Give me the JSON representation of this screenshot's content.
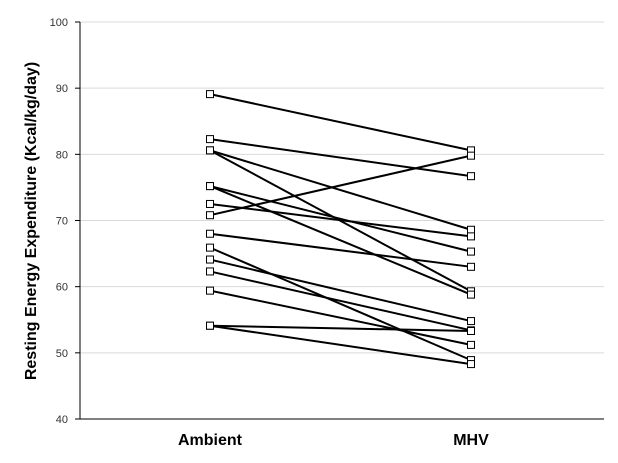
{
  "chart_data": {
    "type": "line",
    "categories": [
      "Ambient",
      "MHV"
    ],
    "ylabel": "Resting Energy Expenditure (Kcal/kg/day)",
    "xlabel": "",
    "title": "",
    "ylim": [
      40,
      100
    ],
    "yticks": [
      40,
      50,
      60,
      70,
      80,
      90,
      100
    ],
    "grid": true,
    "legend": "none",
    "marker": "open-square",
    "line_color": "#000000",
    "grid_color": "#d9d9d9",
    "series": [
      {
        "values": [
          89.1,
          80.6
        ]
      },
      {
        "values": [
          82.3,
          76.7
        ]
      },
      {
        "values": [
          80.6,
          68.6
        ]
      },
      {
        "values": [
          80.6,
          59.3
        ]
      },
      {
        "values": [
          75.2,
          65.3
        ]
      },
      {
        "values": [
          75.2,
          58.8
        ]
      },
      {
        "values": [
          72.5,
          67.6
        ]
      },
      {
        "values": [
          70.8,
          79.8
        ]
      },
      {
        "values": [
          68.0,
          63.0
        ]
      },
      {
        "values": [
          65.9,
          48.9
        ]
      },
      {
        "values": [
          64.1,
          54.8
        ]
      },
      {
        "values": [
          62.3,
          53.4
        ]
      },
      {
        "values": [
          59.4,
          51.2
        ]
      },
      {
        "values": [
          54.1,
          53.3
        ]
      },
      {
        "values": [
          54.1,
          48.3
        ]
      }
    ]
  }
}
